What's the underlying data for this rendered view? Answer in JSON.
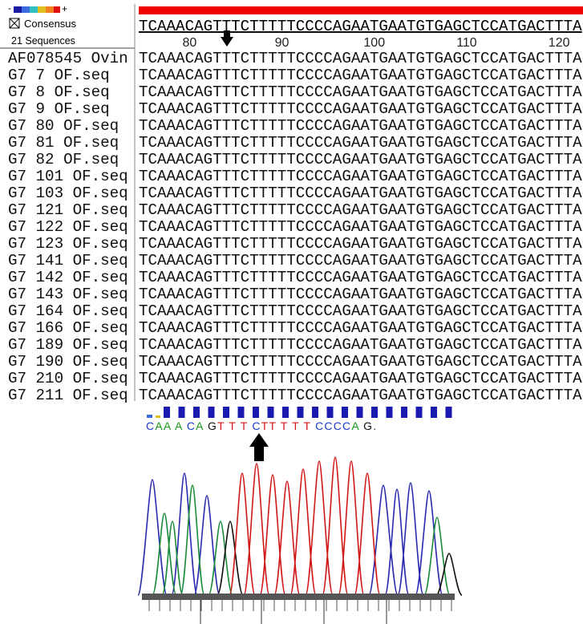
{
  "header": {
    "scale_minus": "-",
    "scale_plus": "+",
    "consensus_label": "Consensus",
    "sequence_count": "21 Sequences",
    "consensus": "TCAAACAGTTTCTTTTTCCCCAGAATGAATGTGAGCTCCATGACTTTA",
    "ruler": [
      "80",
      "90",
      "100",
      "110",
      "120"
    ]
  },
  "rows": [
    {
      "name": "AF078545 Ovin",
      "sequence": "TCAAACAGTTTCTTTTTCCCCAGAATGAATGTGAGCTCCATGACTTTA"
    },
    {
      "name": "G7 7 OF.seq",
      "sequence": "TCAAACAGTTTCTTTTTCCCCAGAATGAATGTGAGCTCCATGACTTTA"
    },
    {
      "name": "G7 8 OF.seq",
      "sequence": "TCAAACAGTTTCTTTTTCCCCAGAATGAATGTGAGCTCCATGACTTTA"
    },
    {
      "name": "G7 9 OF.seq",
      "sequence": "TCAAACAGTTTCTTTTTCCCCAGAATGAATGTGAGCTCCATGACTTTA"
    },
    {
      "name": "G7 80 OF.seq",
      "sequence": "TCAAACAGTTTCTTTTTCCCCAGAATGAATGTGAGCTCCATGACTTTA"
    },
    {
      "name": "G7 81 OF.seq",
      "sequence": "TCAAACAGTTTCTTTTTCCCCAGAATGAATGTGAGCTCCATGACTTTA"
    },
    {
      "name": "G7 82 OF.seq",
      "sequence": "TCAAACAGTTTCTTTTTCCCCAGAATGAATGTGAGCTCCATGACTTTA"
    },
    {
      "name": "G7 101 OF.seq",
      "sequence": "TCAAACAGTTTCTTTTTCCCCAGAATGAATGTGAGCTCCATGACTTTA"
    },
    {
      "name": "G7 103 OF.seq",
      "sequence": "TCAAACAGTTTCTTTTTCCCCAGAATGAATGTGAGCTCCATGACTTTA"
    },
    {
      "name": "G7 121 OF.seq",
      "sequence": "TCAAACAGTTTCTTTTTCCCCAGAATGAATGTGAGCTCCATGACTTTA"
    },
    {
      "name": "G7 122 OF.seq",
      "sequence": "TCAAACAGTTTCTTTTTCCCCAGAATGAATGTGAGCTCCATGACTTTA"
    },
    {
      "name": "G7 123 OF.seq",
      "sequence": "TCAAACAGTTTCTTTTTCCCCAGAATGAATGTGAGCTCCATGACTTTA"
    },
    {
      "name": "G7 141 OF.seq",
      "sequence": "TCAAACAGTTTCTTTTTCCCCAGAATGAATGTGAGCTCCATGACTTTA"
    },
    {
      "name": "G7 142 OF.seq",
      "sequence": "TCAAACAGTTTCTTTTTCCCCAGAATGAATGTGAGCTCCATGACTTTA"
    },
    {
      "name": "G7 143 OF.seq",
      "sequence": "TCAAACAGTTTCTTTTTCCCCAGAATGAATGTGAGCTCCATGACTTTA"
    },
    {
      "name": "G7 164 OF.seq",
      "sequence": "TCAAACAGTTTCTTTTTCCCCAGAATGAATGTGAGCTCCATGACTTTA"
    },
    {
      "name": "G7 166 OF.seq",
      "sequence": "TCAAACAGTTTCTTTTTCCCCAGAATGAATGTGAGCTCCATGACTTTA"
    },
    {
      "name": "G7 189 OF.seq",
      "sequence": "TCAAACAGTTTCTTTTTCCCCAGAATGAATGTGAGCTCCATGACTTTA"
    },
    {
      "name": "G7 190 OF.seq",
      "sequence": "TCAAACAGTTTCTTTTTCCCCAGAATGAATGTGAGCTCCATGACTTTA"
    },
    {
      "name": "G7 210 OF.seq",
      "sequence": "TCAAACAGTTTCTTTTTCCCCAGAATGAATGTGAGCTCCATGACTTTA"
    },
    {
      "name": "G7 211 OF.seq",
      "sequence": "TCAAACAGTTTCTTTTTCCCCAGAATGAATGTGAGCTCCATGACTTTA"
    }
  ],
  "chromatogram": {
    "basecalls": "CAA A CA GT T T CTT T T T CCCCA G."
  }
}
